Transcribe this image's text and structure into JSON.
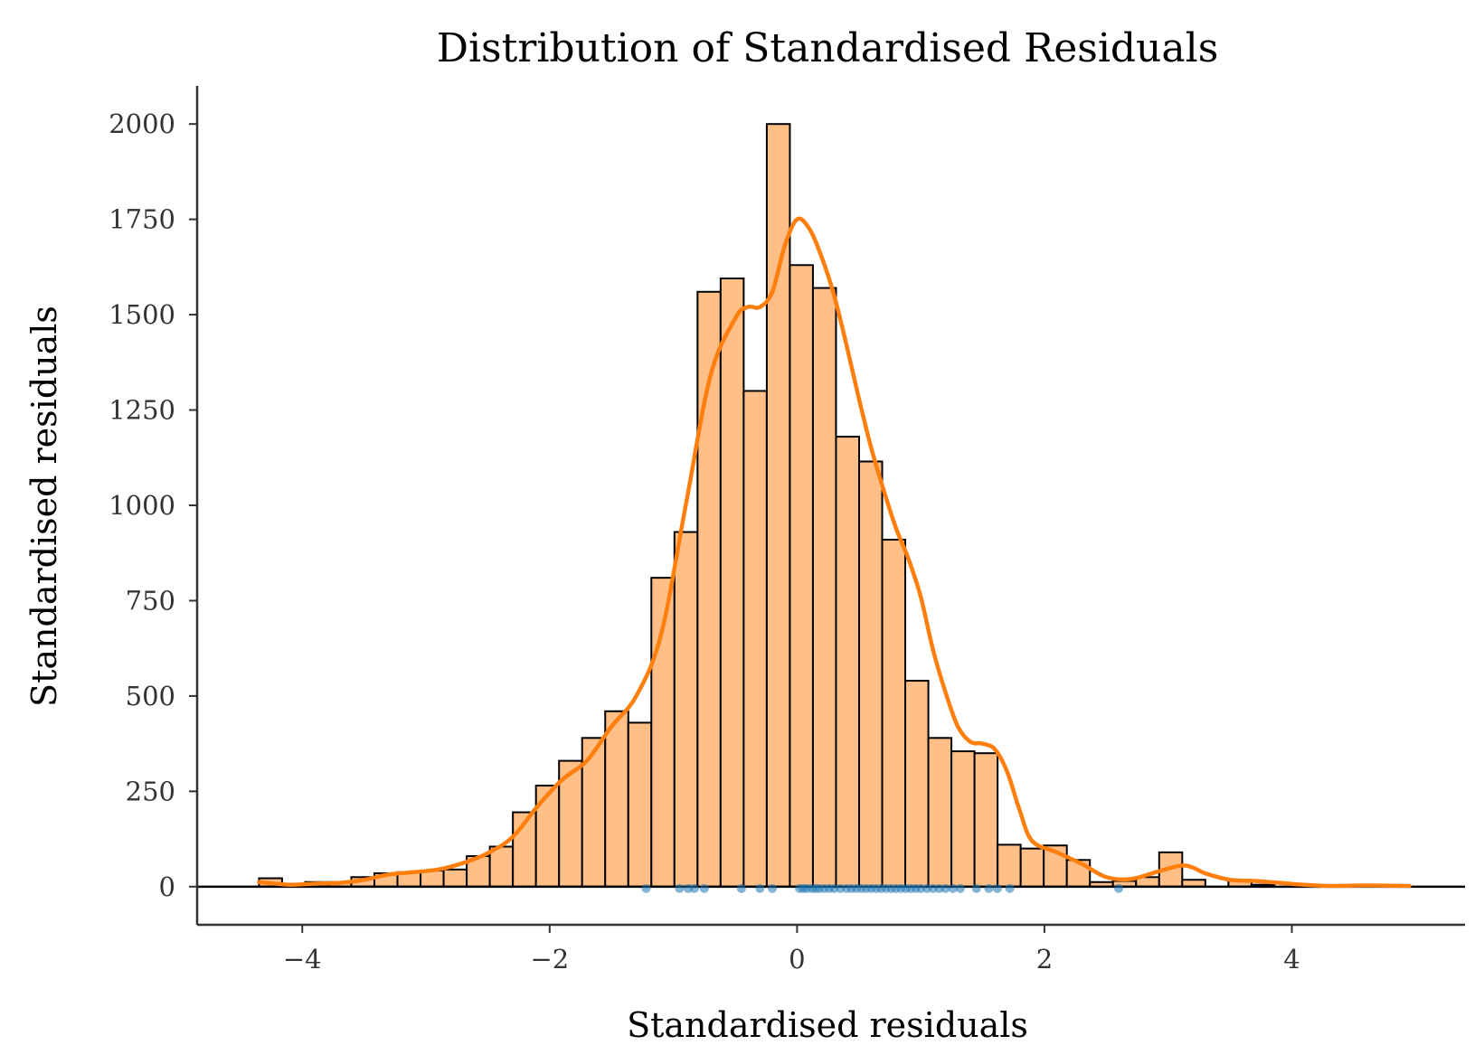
{
  "chart_data": {
    "type": "bar",
    "title": "Distribution of Standardised Residuals",
    "xlabel": "Standardised residuals",
    "ylabel": "Standardised residuals",
    "xlim": [
      -4.85,
      5.4
    ],
    "ylim": [
      -100,
      2100
    ],
    "grid": false,
    "x_ticks": [
      -4,
      -2,
      0,
      2,
      4
    ],
    "x_tick_labels": [
      "−4",
      "−2",
      "0",
      "2",
      "4"
    ],
    "y_ticks": [
      0,
      250,
      500,
      750,
      1000,
      1250,
      1500,
      1750,
      2000
    ],
    "y_tick_labels": [
      "0",
      "250",
      "500",
      "750",
      "1000",
      "1250",
      "1500",
      "1750",
      "2000"
    ],
    "reference_line_y": 0,
    "bar_color": "#ffbf87",
    "line_color": "#ff7f0e",
    "rug_color": "#1f77b4",
    "histogram": {
      "bin_start": -4.35,
      "bin_width": 0.1866,
      "counts": [
        22,
        5,
        12,
        12,
        25,
        35,
        38,
        42,
        45,
        80,
        105,
        195,
        265,
        330,
        390,
        460,
        430,
        810,
        930,
        1560,
        1595,
        1300,
        2000,
        1630,
        1570,
        1180,
        1115,
        910,
        540,
        390,
        355,
        350,
        110,
        100,
        108,
        70,
        12,
        15,
        25,
        90,
        18,
        0,
        16,
        5,
        0,
        0,
        0,
        0,
        0,
        0
      ]
    },
    "kde": {
      "x": [
        -4.35,
        -4.1,
        -3.9,
        -3.7,
        -3.5,
        -3.3,
        -3.1,
        -2.9,
        -2.7,
        -2.5,
        -2.3,
        -2.1,
        -1.9,
        -1.7,
        -1.5,
        -1.3,
        -1.1,
        -0.9,
        -0.7,
        -0.5,
        -0.4,
        -0.3,
        -0.2,
        -0.1,
        0.0,
        0.1,
        0.2,
        0.3,
        0.4,
        0.5,
        0.6,
        0.7,
        0.8,
        0.9,
        1.0,
        1.1,
        1.2,
        1.3,
        1.4,
        1.5,
        1.6,
        1.7,
        1.8,
        1.9,
        2.1,
        2.3,
        2.5,
        2.7,
        2.9,
        3.1,
        3.2,
        3.3,
        3.5,
        3.7,
        3.9,
        4.1,
        4.3,
        4.6,
        4.95
      ],
      "y": [
        12,
        5,
        8,
        10,
        18,
        32,
        38,
        45,
        62,
        88,
        130,
        210,
        280,
        330,
        420,
        500,
        660,
        1000,
        1340,
        1490,
        1520,
        1520,
        1560,
        1680,
        1750,
        1725,
        1650,
        1550,
        1420,
        1280,
        1150,
        1040,
        940,
        860,
        760,
        620,
        510,
        420,
        380,
        375,
        360,
        300,
        200,
        120,
        90,
        60,
        25,
        20,
        38,
        55,
        50,
        35,
        18,
        15,
        10,
        5,
        2,
        3,
        2
      ]
    },
    "rug_x": [
      -1.22,
      -0.95,
      -0.88,
      -0.83,
      -0.75,
      -0.45,
      -0.3,
      -0.2,
      0.02,
      0.05,
      0.08,
      0.12,
      0.15,
      0.18,
      0.22,
      0.26,
      0.3,
      0.35,
      0.4,
      0.44,
      0.48,
      0.52,
      0.56,
      0.6,
      0.64,
      0.68,
      0.72,
      0.76,
      0.8,
      0.84,
      0.88,
      0.92,
      0.96,
      1.0,
      1.05,
      1.1,
      1.15,
      1.2,
      1.26,
      1.32,
      1.45,
      1.55,
      1.62,
      1.72,
      2.6
    ]
  }
}
